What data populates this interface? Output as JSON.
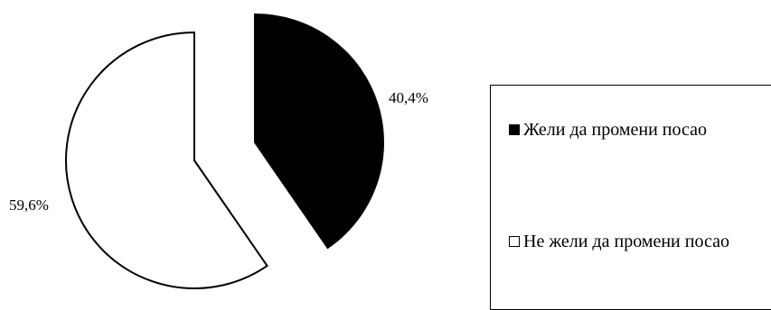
{
  "chart_data": {
    "type": "pie",
    "categories": [
      "Жели да промени посао",
      "Не жели да промени посао"
    ],
    "values": [
      40.4,
      59.6
    ],
    "data_labels": [
      "40,4%",
      "59,6%"
    ],
    "colors": [
      "#000000",
      "#ffffff"
    ],
    "exploded": true,
    "legend_position": "right"
  },
  "legend": {
    "items": [
      {
        "label": "Жели да промени посао",
        "color": "#000000"
      },
      {
        "label": "Не жели да промени посао",
        "color": "#ffffff"
      }
    ]
  }
}
